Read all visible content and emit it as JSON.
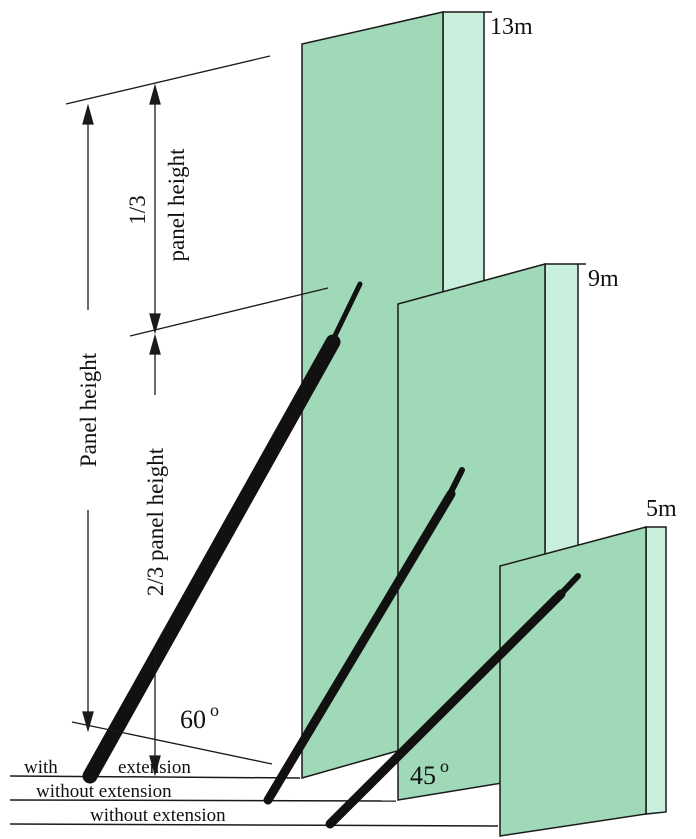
{
  "panels": {
    "tall": {
      "height_label": "13m"
    },
    "medium": {
      "height_label": "9m"
    },
    "short": {
      "height_label": "5m"
    }
  },
  "dimensions": {
    "panel_height": "Panel height",
    "one_third_fraction": "1/3",
    "one_third_text": "panel height",
    "two_thirds": "2/3 panel height"
  },
  "angles": {
    "steep": "60",
    "shallow": "45",
    "degree_symbol": "o"
  },
  "ground_lines": {
    "with_word": "with",
    "extension_word": "extension",
    "without_1": "without extension",
    "without_2": "without extension"
  },
  "colors": {
    "panel_front": "#9fd9b7",
    "panel_side": "#c8f0dc",
    "prop": "#111111"
  }
}
